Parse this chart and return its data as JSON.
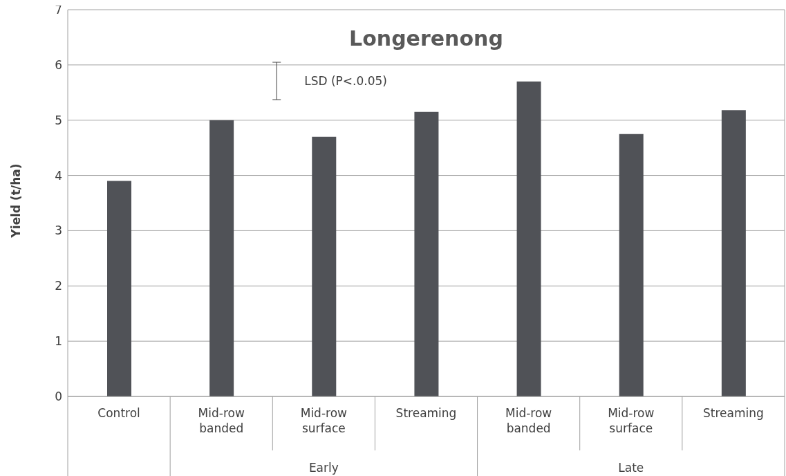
{
  "chart_data": {
    "type": "bar",
    "title": "Longerenong",
    "ylabel": "Yield (t/ha)",
    "categories": [
      "Control",
      "Mid-row banded",
      "Mid-row surface",
      "Streaming",
      "Mid-row banded",
      "Mid-row surface",
      "Streaming"
    ],
    "values": [
      3.9,
      5.0,
      4.7,
      5.15,
      5.7,
      4.75,
      5.18
    ],
    "color": "#505257",
    "ylim": [
      0,
      7
    ],
    "yticks": [
      0,
      1,
      2,
      3,
      4,
      5,
      6,
      7
    ],
    "grid": "y",
    "annotations": [
      "LSD (P<.0.05)",
      "Early",
      "Late"
    ]
  }
}
